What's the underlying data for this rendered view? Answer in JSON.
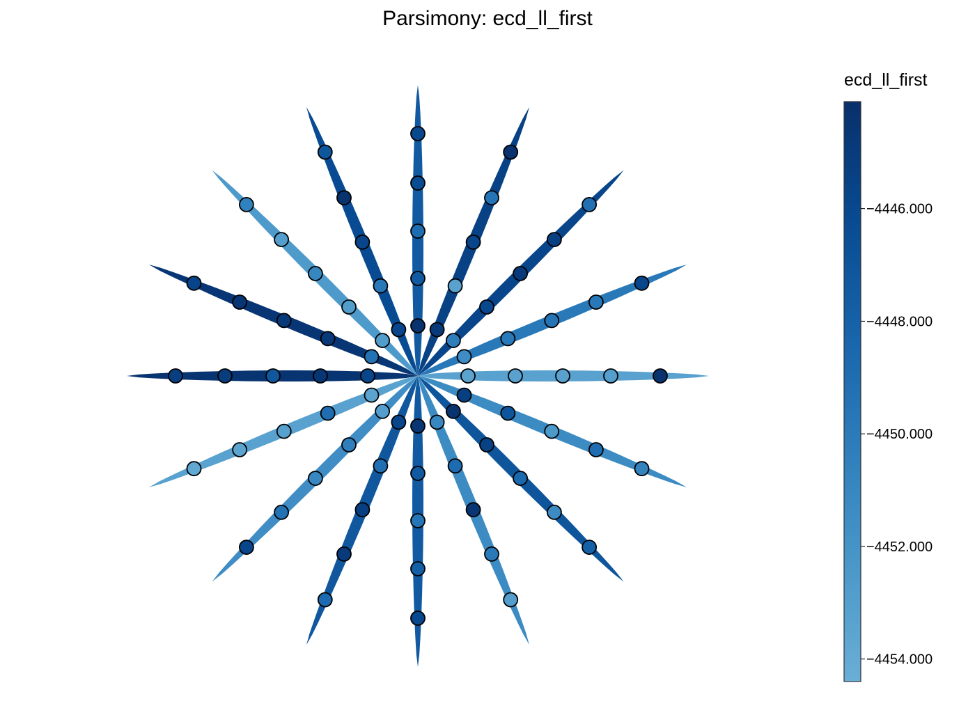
{
  "chart_data": {
    "type": "scatter",
    "title": "Parsimony: ecd_ll_first",
    "colorbar": {
      "title": "ecd_ll_first",
      "ticks": [
        -4446.0,
        -4448.0,
        -4450.0,
        -4452.0,
        -4454.0
      ],
      "tick_labels": [
        "−4446.000",
        "−4448.000",
        "−4450.000",
        "−4452.000",
        "−4454.000"
      ],
      "range": [
        -4454.4,
        -4444.1
      ],
      "colormap": [
        "#6aaed6",
        "#4a98c9",
        "#2e7ebc",
        "#1764ab",
        "#084a91",
        "#08306b"
      ]
    },
    "branches": [
      {
        "angle": 0,
        "value": -4453.3,
        "points": [
          -4453.5,
          -4453.3,
          -4453.3,
          -4453.0,
          -4444.3
        ]
      },
      {
        "angle": 22.5,
        "value": -4449.8,
        "points": [
          -4451.5,
          -4449.8,
          -4449.5,
          -4449.8,
          -4445.8
        ]
      },
      {
        "angle": 45,
        "value": -4445.8,
        "points": [
          -4450.3,
          -4446.0,
          -4444.8,
          -4445.4,
          -4449.2
        ]
      },
      {
        "angle": 67.5,
        "value": -4445.5,
        "points": [
          -4444.8,
          -4453.3,
          -4445.8,
          -4449.5,
          -4444.3
        ]
      },
      {
        "angle": 90,
        "value": -4447.4,
        "points": [
          -4444.3,
          -4447.4,
          -4448.9,
          -4446.3,
          -4446.0
        ]
      },
      {
        "angle": 112.5,
        "value": -4446.2,
        "points": [
          -4445.8,
          -4449.8,
          -4445.8,
          -4444.3,
          -4447.1
        ]
      },
      {
        "angle": 135,
        "value": -4452.6,
        "points": [
          -4452.8,
          -4452.8,
          -4450.9,
          -4452.9,
          -4450.5
        ]
      },
      {
        "angle": 157.5,
        "value": -4444.6,
        "points": [
          -4449.3,
          -4444.8,
          -4444.8,
          -4444.6,
          -4445.7
        ]
      },
      {
        "angle": 180,
        "value": -4444.5,
        "points": [
          -4445.8,
          -4444.6,
          -4447.2,
          -4445.1,
          -4445.3
        ]
      },
      {
        "angle": 202.5,
        "value": -4453.3,
        "points": [
          -4453.5,
          -4449.0,
          -4453.2,
          -4453.5,
          -4453.8
        ]
      },
      {
        "angle": 225,
        "value": -4451.5,
        "points": [
          -4452.9,
          -4450.3,
          -4451.0,
          -4449.3,
          -4445.8
        ]
      },
      {
        "angle": 247.5,
        "value": -4447.2,
        "points": [
          -4445.8,
          -4449.1,
          -4445.3,
          -4445.0,
          -4448.7
        ]
      },
      {
        "angle": 270,
        "value": -4447.4,
        "points": [
          -4444.6,
          -4447.4,
          -4449.6,
          -4447.8,
          -4446.0
        ]
      },
      {
        "angle": 292.5,
        "value": -4451.3,
        "points": [
          -4451.0,
          -4448.8,
          -4444.6,
          -4449.9,
          -4452.9
        ]
      },
      {
        "angle": 315,
        "value": -4447.0,
        "points": [
          -4444.3,
          -4445.5,
          -4448.5,
          -4451.3,
          -4448.0
        ]
      },
      {
        "angle": 337.5,
        "value": -4451.3,
        "points": [
          -4445.3,
          -4447.0,
          -4452.5,
          -4449.0,
          -4450.7
        ]
      }
    ]
  }
}
